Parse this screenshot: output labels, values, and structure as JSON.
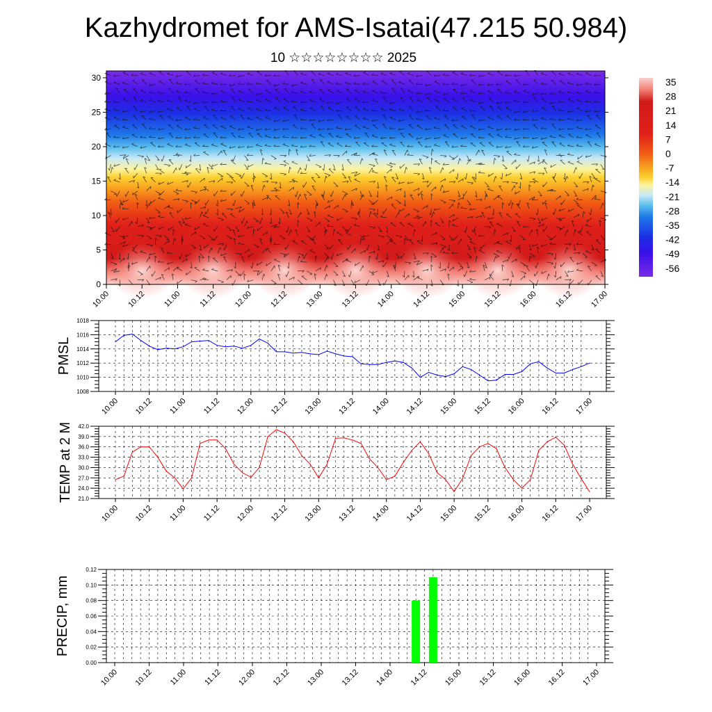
{
  "title": "Kazhydromet for AMS-Isatai(47.215 50.984)",
  "subtitle": "10 ☆☆☆☆☆☆☆☆ 2025",
  "colorbar": {
    "labels": [
      "35",
      "28",
      "21",
      "14",
      "7",
      "0",
      "-7",
      "-14",
      "-21",
      "-28",
      "-35",
      "-42",
      "-49",
      "-56"
    ]
  },
  "chart_data": [
    {
      "type": "heatmap",
      "name": "profile",
      "x_ticks": [
        "10.00",
        "10.12",
        "11.00",
        "11.12",
        "12.00",
        "12.12",
        "13.00",
        "13.12",
        "14.00",
        "14.12",
        "15.00",
        "15.12",
        "16.00",
        "16.12",
        "17.00"
      ],
      "y_ticks": [
        "0",
        "5",
        "10",
        "15",
        "20",
        "25",
        "30"
      ],
      "ylim": [
        0,
        31
      ],
      "value_range": [
        -56,
        35
      ],
      "overlay": "wind-barbs"
    },
    {
      "type": "line",
      "ylabel": "PMSL",
      "x_ticks": [
        "10.00",
        "10.12",
        "11.00",
        "11.12",
        "12.00",
        "12.12",
        "13.00",
        "13.12",
        "14.00",
        "14.12",
        "15.00",
        "15.12",
        "16.00",
        "16.12",
        "17.00"
      ],
      "y_ticks": [
        "1018",
        "1016",
        "1014",
        "1012",
        "1010",
        "1008"
      ],
      "ylim": [
        1008,
        1018
      ],
      "color": "#0000ff",
      "values": [
        1015.0,
        1015.9,
        1016.1,
        1015.2,
        1014.4,
        1013.9,
        1014.1,
        1014.0,
        1014.3,
        1015.0,
        1015.1,
        1015.2,
        1014.5,
        1014.3,
        1014.4,
        1014.1,
        1014.5,
        1015.4,
        1014.8,
        1013.6,
        1013.6,
        1013.4,
        1013.5,
        1013.3,
        1013.2,
        1013.7,
        1013.3,
        1013.0,
        1012.9,
        1011.9,
        1011.8,
        1011.8,
        1012.1,
        1012.3,
        1012.1,
        1011.3,
        1010.0,
        1010.7,
        1010.3,
        1010.1,
        1010.5,
        1011.5,
        1011.1,
        1010.3,
        1009.5,
        1009.6,
        1010.4,
        1010.4,
        1010.8,
        1011.9,
        1012.2,
        1011.3,
        1010.6,
        1010.6,
        1011.1,
        1011.5,
        1012.0
      ]
    },
    {
      "type": "line",
      "ylabel": "TEMP at 2 M",
      "x_ticks": [
        "10.00",
        "10.12",
        "11.00",
        "11.12",
        "12.00",
        "12.12",
        "13.00",
        "13.12",
        "14.00",
        "14.12",
        "15.00",
        "15.12",
        "16.00",
        "16.12",
        "17.00"
      ],
      "y_ticks": [
        "42.0",
        "39.0",
        "36.0",
        "33.0",
        "30.0",
        "27.0",
        "24.0",
        "21.0"
      ],
      "ylim": [
        21,
        42
      ],
      "color": "#ff0000",
      "values": [
        26.5,
        27.5,
        34.5,
        36.0,
        36.0,
        33.0,
        29.0,
        27.0,
        23.8,
        27.0,
        37.0,
        38.0,
        38.0,
        35.5,
        31.0,
        28.5,
        27.2,
        30.0,
        39.0,
        41.0,
        40.0,
        37.5,
        33.5,
        31.0,
        27.0,
        31.0,
        38.5,
        38.6,
        38.0,
        37.0,
        32.5,
        30.0,
        26.5,
        27.5,
        31.5,
        35.0,
        37.5,
        34.0,
        28.5,
        26.5,
        23.0,
        26.8,
        33.5,
        36.0,
        37.0,
        35.5,
        30.0,
        26.5,
        24.0,
        26.5,
        35.0,
        37.5,
        38.8,
        36.5,
        31.0,
        26.8,
        23.0
      ]
    },
    {
      "type": "bar",
      "ylabel": "PRECIP, mm",
      "x_ticks": [
        "10.00",
        "10.12",
        "11.00",
        "11.12",
        "12.00",
        "12.12",
        "13.00",
        "13.12",
        "14.00",
        "14.12",
        "15.00",
        "15.12",
        "16.00",
        "16.12",
        "17.00"
      ],
      "y_ticks": [
        "0.12",
        "0.10",
        "0.08",
        "0.06",
        "0.04",
        "0.02",
        "0.00"
      ],
      "ylim": [
        0,
        0.12
      ],
      "color": "#00ff00",
      "bars": [
        {
          "x": "14.09",
          "value": 0.08
        },
        {
          "x": "14.15",
          "value": 0.11
        }
      ]
    }
  ]
}
